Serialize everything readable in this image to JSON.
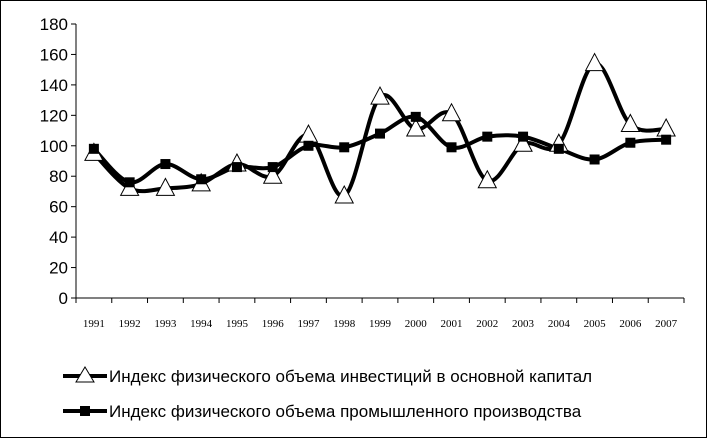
{
  "chart_data": {
    "type": "line",
    "title": "",
    "xlabel": "",
    "ylabel": "",
    "ylim": [
      0,
      180
    ],
    "yticks": [
      0,
      20,
      40,
      60,
      80,
      100,
      120,
      140,
      160,
      180
    ],
    "grid": false,
    "legend_position": "bottom",
    "categories": [
      "1991",
      "1992",
      "1993",
      "1994",
      "1995",
      "1996",
      "1997",
      "1998",
      "1999",
      "2000",
      "2001",
      "2002",
      "2003",
      "2004",
      "2005",
      "2006",
      "2007"
    ],
    "series": [
      {
        "name": "Индекс физического объема инвестиций в основной капитал",
        "marker": "triangle",
        "values": [
          95,
          72,
          72,
          75,
          88,
          80,
          107,
          67,
          132,
          111,
          121,
          77,
          101,
          101,
          154,
          114,
          111
        ]
      },
      {
        "name": "Индекс физического объема промышленного производства",
        "marker": "square",
        "values": [
          98,
          76,
          88,
          78,
          86,
          86,
          100,
          99,
          108,
          119,
          99,
          106,
          106,
          98,
          91,
          102,
          104
        ]
      }
    ],
    "colors": {
      "line": "#000000",
      "triangle_fill": "#ffffff",
      "square_fill": "#000000"
    }
  }
}
